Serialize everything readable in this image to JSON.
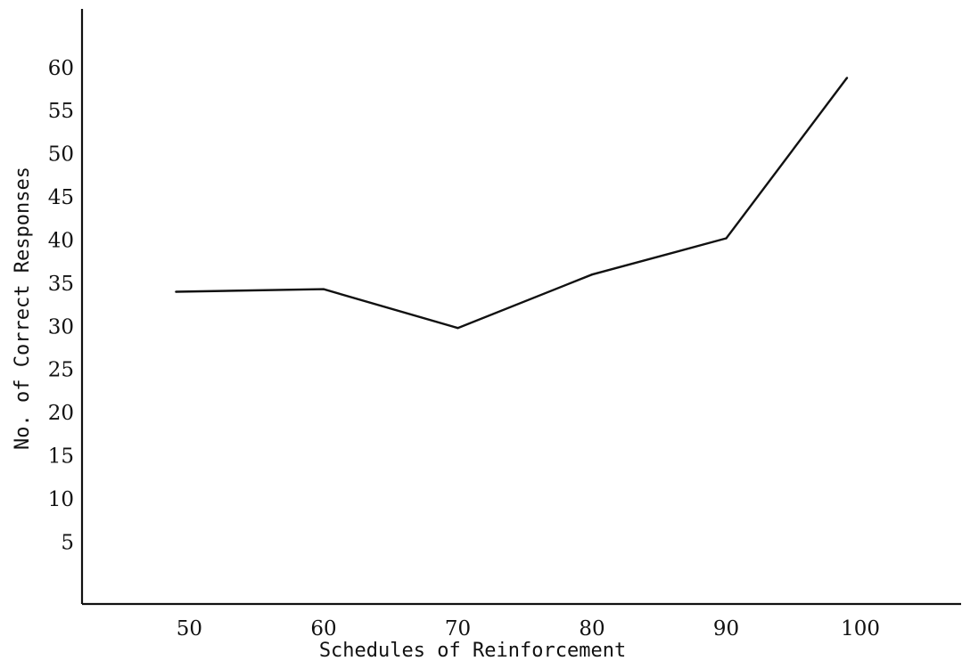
{
  "chart_data": {
    "type": "line",
    "title": "",
    "xlabel": "Schedules of Reinforcement",
    "ylabel": "No. of Correct Responses",
    "x": [
      49,
      60,
      70,
      80,
      90,
      99
    ],
    "series": [
      {
        "values": [
          34,
          34.3,
          29.8,
          36,
          40.2,
          58.8
        ]
      }
    ],
    "x_ticks": [
      50,
      60,
      70,
      80,
      90,
      100
    ],
    "y_ticks": [
      5,
      10,
      15,
      20,
      25,
      30,
      35,
      40,
      45,
      50,
      55,
      60
    ],
    "xlim": [
      42,
      107.5
    ],
    "ylim": [
      -2.2,
      66.8
    ],
    "grid": false,
    "line_color": "#111111",
    "axis_color": "#111111"
  }
}
